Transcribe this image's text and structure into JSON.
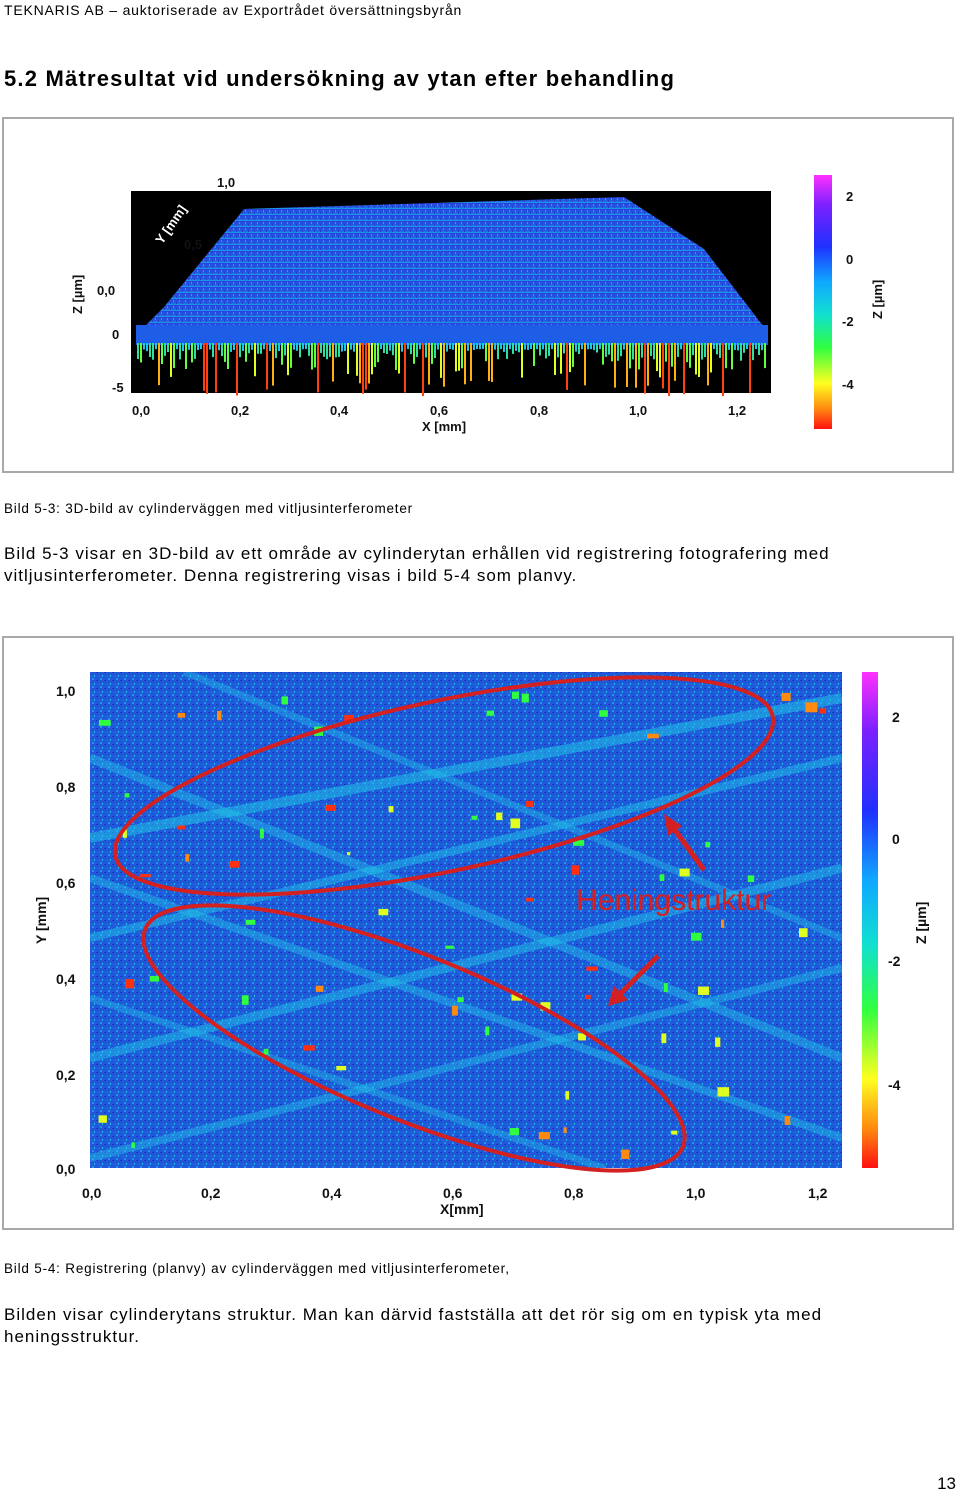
{
  "header": {
    "text": "TEKNARIS AB – auktoriserade av Exportrådet översättningsbyrån"
  },
  "section": {
    "title": "5.2 Mätresultat vid undersökning av ytan efter behandling"
  },
  "figure1": {
    "plot_type": "3D surface (interferometer)",
    "y_axis_label": "Y [mm]",
    "y_ticks": [
      "0,5",
      "1,0"
    ],
    "z_axis_label": "Z [µm]",
    "z_ticks": [
      "0,0",
      "0",
      "-5"
    ],
    "x_axis_label": "X [mm]",
    "x_ticks": [
      "0,0",
      "0,2",
      "0,4",
      "0,6",
      "0,8",
      "1,0",
      "1,2"
    ],
    "colorbar_label": "Z [µm]",
    "colorbar_ticks": [
      "2",
      "0",
      "-2",
      "-4"
    ],
    "caption": "Bild 5-3: 3D-bild av cylinderväggen med vitljusinterferometer"
  },
  "paragraph1": "Bild 5-3 visar en 3D-bild av ett område av cylinderytan erhållen vid registrering fotografering med vitljusinterferometer. Denna registrering visas i bild 5-4 som planvy.",
  "figure2": {
    "plot_type": "planview height map",
    "y_axis_label": "Y [mm]",
    "y_ticks": [
      "1,0",
      "0,8",
      "0,6",
      "0,4",
      "0,2",
      "0,0"
    ],
    "x_axis_label": "X[mm]",
    "x_ticks": [
      "0,0",
      "0,2",
      "0,4",
      "0,6",
      "0,8",
      "1,0",
      "1,2"
    ],
    "colorbar_label": "Z [µm]",
    "colorbar_ticks": [
      "2",
      "0",
      "-2",
      "-4"
    ],
    "annotation": "Heningstruktur",
    "colors": {
      "annotation_red": "#d42020",
      "surface_blue": "#1f58d8",
      "surface_cyan": "#22c4e8"
    },
    "caption": "Bild 5-4: Registrering (planvy) av cylinderväggen med vitljusinterferometer,"
  },
  "paragraph2": "Bilden visar cylinderytans struktur. Man kan därvid fastställa att det rör sig om en typisk yta med heningsstruktur.",
  "page_number": "13"
}
